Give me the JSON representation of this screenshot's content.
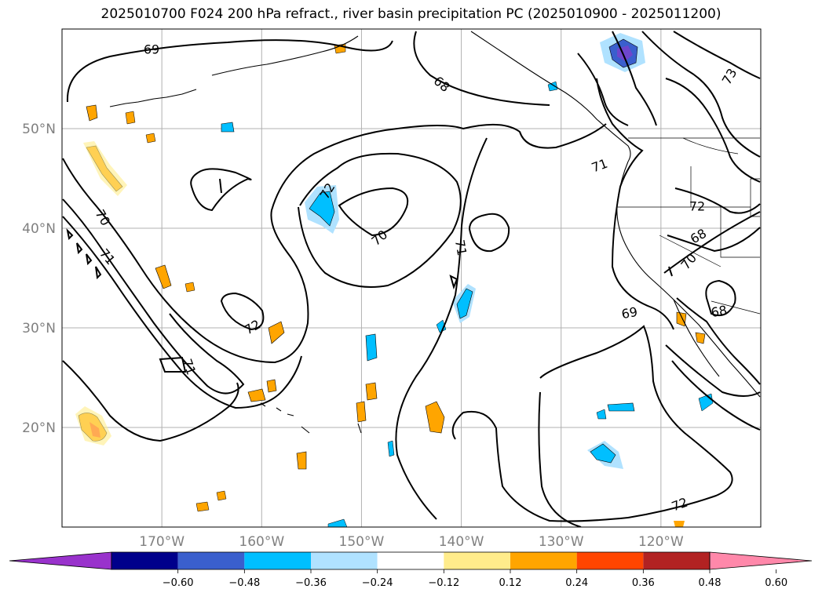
{
  "title": "2025010700 F024 200 hPa refract., river basin precipitation PC (2025010900 - 2025011200)",
  "map": {
    "lon_range": [
      -180,
      -110
    ],
    "lat_range": [
      10,
      60
    ],
    "lat_ticks": [
      {
        "value": 20,
        "label": "20°N"
      },
      {
        "value": 30,
        "label": "30°N"
      },
      {
        "value": 40,
        "label": "40°N"
      },
      {
        "value": 50,
        "label": "50°N"
      }
    ],
    "lon_ticks": [
      {
        "value": -170,
        "label": "170°W"
      },
      {
        "value": -160,
        "label": "160°W"
      },
      {
        "value": -150,
        "label": "150°W"
      },
      {
        "value": -140,
        "label": "140°W"
      },
      {
        "value": -130,
        "label": "130°W"
      },
      {
        "value": -120,
        "label": "120°W"
      }
    ],
    "grid": true,
    "contour_labels": [
      "69",
      "68",
      "73",
      "70",
      "71",
      "71",
      "72",
      "70",
      "71",
      "69",
      "70",
      "68",
      "72",
      "68",
      "72",
      "71",
      "72"
    ]
  },
  "colorbar": {
    "ticks": [
      "−0.60",
      "−0.48",
      "−0.36",
      "−0.24",
      "−0.12",
      "0.12",
      "0.24",
      "0.36",
      "0.48",
      "0.60"
    ],
    "colors": [
      "#9932cc",
      "#00008b",
      "#3a5fcd",
      "#00bfff",
      "#b0e2ff",
      "#ffffff",
      "#ffec8b",
      "#ffa500",
      "#ff4500",
      "#b22222",
      "#ff88aa"
    ]
  }
}
